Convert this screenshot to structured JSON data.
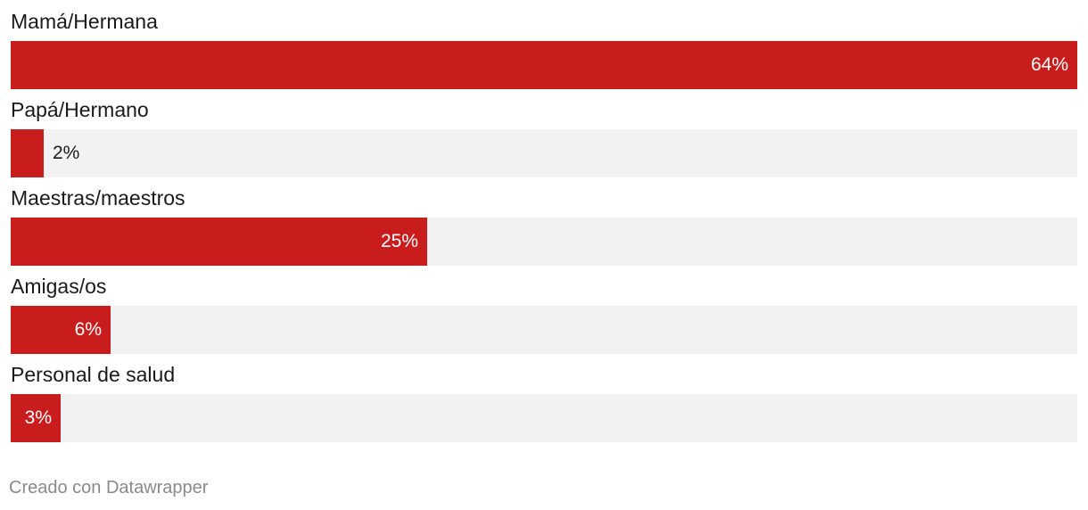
{
  "chart_data": {
    "type": "bar",
    "orientation": "horizontal",
    "categories": [
      "Mamá/Hermana",
      "Papá/Hermano",
      "Maestras/maestros",
      "Amigas/os",
      "Personal de salud"
    ],
    "values": [
      64,
      2,
      25,
      6,
      3
    ],
    "value_labels": [
      "64%",
      "2%",
      "25%",
      "6%",
      "3%"
    ],
    "xlim": [
      0,
      64
    ],
    "grid": false,
    "legend": "none",
    "colors": {
      "bar": "#c91d1d",
      "track": "#f2f2f2",
      "label_inside": "#ffffff",
      "label_outside": "#1a1a1a"
    }
  },
  "footer": {
    "credit": "Creado con Datawrapper"
  }
}
